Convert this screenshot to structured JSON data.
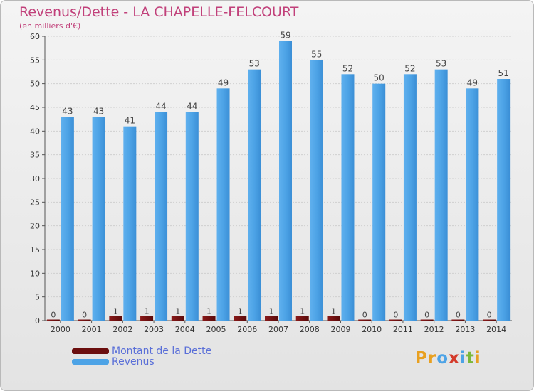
{
  "title": "Revenus/Dette - LA CHAPELLE-FELCOURT",
  "subtitle": "(en milliers d'€)",
  "colors": {
    "dette": "#6b0e0e",
    "revenus": "#4da3e6",
    "title": "#c1407a",
    "legend_text": "#5a6fd8"
  },
  "legend": [
    {
      "label": "Montant de la Dette",
      "color": "#6b0e0e"
    },
    {
      "label": "Revenus",
      "color": "#4da3e6"
    }
  ],
  "logo": {
    "text": "Proxiti",
    "letter_colors": [
      "#e8a020",
      "#e8a020",
      "#4da3e6",
      "#d43a2a",
      "#4da3e6",
      "#7bb83a",
      "#e8a020"
    ]
  },
  "chart_data": {
    "type": "bar",
    "title": "Revenus/Dette - LA CHAPELLE-FELCOURT",
    "subtitle": "(en milliers d'€)",
    "categories": [
      "2000",
      "2001",
      "2002",
      "2003",
      "2004",
      "2005",
      "2006",
      "2007",
      "2008",
      "2009",
      "2010",
      "2011",
      "2012",
      "2013",
      "2014"
    ],
    "series": [
      {
        "name": "Montant de la Dette",
        "values": [
          0,
          0,
          1,
          1,
          1,
          1,
          1,
          1,
          1,
          1,
          0,
          0,
          0,
          0,
          0
        ]
      },
      {
        "name": "Revenus",
        "values": [
          43,
          43,
          41,
          44,
          44,
          49,
          53,
          59,
          55,
          52,
          50,
          52,
          53,
          49,
          51
        ]
      }
    ],
    "ylim": [
      0,
      60
    ],
    "yticks": [
      0,
      5,
      10,
      15,
      20,
      25,
      30,
      35,
      40,
      45,
      50,
      55,
      60
    ],
    "grid": true,
    "legend_position": "bottom-left"
  }
}
